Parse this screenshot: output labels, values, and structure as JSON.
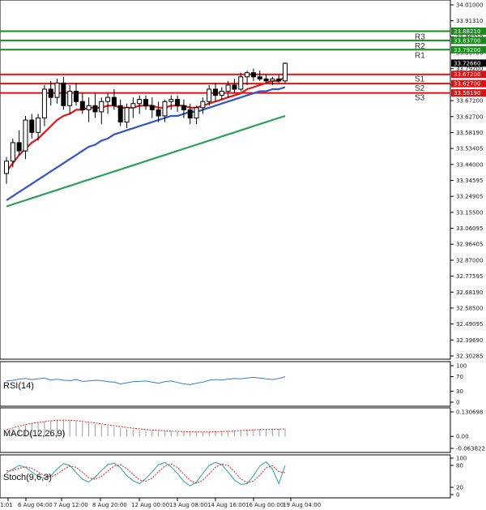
{
  "chart_data": [
    {
      "type": "candlestick",
      "y_ticks": [
        "34.01000",
        "33.91310",
        "33.88210",
        "33.83700",
        "33.79200",
        "33.72660",
        "33.67200",
        "33.62700",
        "33.58190",
        "33.53405",
        "33.44000",
        "33.34595",
        "33.24905",
        "33.15500",
        "33.06095",
        "32.96405",
        "32.87000",
        "32.77595",
        "32.68190",
        "32.58500",
        "32.49095",
        "32.39690",
        "32.30285"
      ],
      "x_ticks": [
        "1:01",
        "6 Aug 04:00",
        "7 Aug 12:00",
        "8 Aug 20:00",
        "12 Aug 00:00",
        "13 Aug 08:00",
        "14 Aug 16:00",
        "16 Aug 00:00",
        "19 Aug 04:00"
      ],
      "ylim": [
        32.30285,
        34.01
      ],
      "levels": [
        {
          "name": "R3",
          "value": 33.8821,
          "color": "#1a8a1a"
        },
        {
          "name": "R2",
          "value": 33.837,
          "color": "#1a8a1a"
        },
        {
          "name": "R1",
          "value": 33.792,
          "color": "#1a8a1a"
        },
        {
          "name": "S1",
          "value": 33.672,
          "color": "#e01010"
        },
        {
          "name": "S2",
          "value": 33.627,
          "color": "#e01010"
        },
        {
          "name": "S3",
          "value": 33.5819,
          "color": "#e01010"
        }
      ],
      "current_price": {
        "value": 33.7266,
        "label": "33.72660"
      },
      "candles": [
        [
          33.19,
          33.27,
          33.14,
          33.25
        ],
        [
          33.25,
          33.36,
          33.22,
          33.34
        ],
        [
          33.34,
          33.4,
          33.28,
          33.3
        ],
        [
          33.3,
          33.47,
          33.26,
          33.45
        ],
        [
          33.45,
          33.48,
          33.36,
          33.39
        ],
        [
          33.39,
          33.48,
          33.35,
          33.46
        ],
        [
          33.46,
          33.62,
          33.42,
          33.6
        ],
        [
          33.6,
          33.64,
          33.52,
          33.56
        ],
        [
          33.56,
          33.65,
          33.53,
          33.63
        ],
        [
          33.63,
          33.66,
          33.5,
          33.52
        ],
        [
          33.52,
          33.62,
          33.48,
          33.59
        ],
        [
          33.59,
          33.63,
          33.52,
          33.54
        ],
        [
          33.54,
          33.58,
          33.48,
          33.5
        ],
        [
          33.5,
          33.56,
          33.44,
          33.52
        ],
        [
          33.52,
          33.58,
          33.46,
          33.49
        ],
        [
          33.49,
          33.56,
          33.43,
          33.54
        ],
        [
          33.54,
          33.58,
          33.48,
          33.56
        ],
        [
          33.56,
          33.6,
          33.5,
          33.52
        ],
        [
          33.52,
          33.55,
          33.42,
          33.44
        ],
        [
          33.44,
          33.53,
          33.41,
          33.51
        ],
        [
          33.51,
          33.56,
          33.46,
          33.53
        ],
        [
          33.53,
          33.57,
          33.48,
          33.55
        ],
        [
          33.55,
          33.57,
          33.5,
          33.52
        ],
        [
          33.52,
          33.56,
          33.46,
          33.5
        ],
        [
          33.5,
          33.54,
          33.44,
          33.47
        ],
        [
          33.47,
          33.55,
          33.44,
          33.54
        ],
        [
          33.54,
          33.57,
          33.5,
          33.55
        ],
        [
          33.55,
          33.57,
          33.49,
          33.52
        ],
        [
          33.52,
          33.55,
          33.46,
          33.5
        ],
        [
          33.5,
          33.53,
          33.43,
          33.46
        ],
        [
          33.46,
          33.52,
          33.43,
          33.51
        ],
        [
          33.51,
          33.56,
          33.48,
          33.54
        ],
        [
          33.54,
          33.62,
          33.52,
          33.6
        ],
        [
          33.6,
          33.63,
          33.54,
          33.57
        ],
        [
          33.57,
          33.61,
          33.55,
          33.59
        ],
        [
          33.59,
          33.64,
          33.56,
          33.62
        ],
        [
          33.62,
          33.65,
          33.58,
          33.6
        ],
        [
          33.6,
          33.68,
          33.59,
          33.66
        ],
        [
          33.66,
          33.69,
          33.62,
          33.68
        ],
        [
          33.68,
          33.7,
          33.64,
          33.66
        ],
        [
          33.66,
          33.69,
          33.64,
          33.65
        ],
        [
          33.65,
          33.67,
          33.63,
          33.64
        ],
        [
          33.64,
          33.66,
          33.62,
          33.65
        ],
        [
          33.65,
          33.67,
          33.63,
          33.64
        ],
        [
          33.64,
          33.73,
          33.63,
          33.726
        ]
      ],
      "ma_fast": [
        33.2,
        33.24,
        33.28,
        33.31,
        33.34,
        33.36,
        33.39,
        33.42,
        33.45,
        33.47,
        33.48,
        33.5,
        33.5,
        33.51,
        33.51,
        33.51,
        33.52,
        33.52,
        33.51,
        33.51,
        33.51,
        33.52,
        33.52,
        33.52,
        33.51,
        33.51,
        33.52,
        33.52,
        33.52,
        33.51,
        33.51,
        33.52,
        33.53,
        33.54,
        33.55,
        33.56,
        33.57,
        33.58,
        33.6,
        33.61,
        33.62,
        33.63,
        33.64,
        33.64,
        33.66
      ],
      "ma_mid": [
        33.06,
        33.08,
        33.1,
        33.12,
        33.14,
        33.16,
        33.18,
        33.2,
        33.22,
        33.24,
        33.26,
        33.28,
        33.3,
        33.32,
        33.33,
        33.35,
        33.36,
        33.38,
        33.39,
        33.4,
        33.41,
        33.42,
        33.43,
        33.44,
        33.45,
        33.46,
        33.47,
        33.47,
        33.48,
        33.49,
        33.49,
        33.5,
        33.51,
        33.52,
        33.53,
        33.54,
        33.55,
        33.56,
        33.57,
        33.58,
        33.59,
        33.59,
        33.6,
        33.6,
        33.61
      ],
      "ma_slow": [
        33.03,
        33.04,
        33.05,
        33.06,
        33.07,
        33.08,
        33.09,
        33.1,
        33.11,
        33.12,
        33.13,
        33.14,
        33.15,
        33.16,
        33.17,
        33.18,
        33.19,
        33.2,
        33.21,
        33.22,
        33.23,
        33.24,
        33.25,
        33.26,
        33.27,
        33.28,
        33.29,
        33.3,
        33.31,
        33.32,
        33.33,
        33.34,
        33.35,
        33.36,
        33.37,
        33.38,
        33.39,
        33.4,
        33.41,
        33.42,
        33.43,
        33.44,
        33.45,
        33.46,
        33.47
      ]
    },
    {
      "type": "line",
      "name": "RSI(14)",
      "y_ticks": [
        "100",
        "70",
        "30",
        "0"
      ],
      "ylim": [
        0,
        100
      ],
      "values": [
        58,
        60,
        63,
        65,
        62,
        64,
        66,
        61,
        63,
        60,
        59,
        62,
        57,
        58,
        60,
        59,
        56,
        55,
        50,
        53,
        56,
        57,
        58,
        55,
        52,
        56,
        58,
        54,
        50,
        48,
        52,
        55,
        60,
        62,
        61,
        63,
        65,
        64,
        66,
        68,
        66,
        64,
        62,
        65,
        70
      ]
    },
    {
      "type": "bar",
      "name": "MACD(12,26,9)",
      "y_ticks": [
        "0.130698",
        "0.00",
        "-0.063822"
      ],
      "ylim": [
        -0.063822,
        0.130698
      ],
      "values": [
        0.03,
        0.04,
        0.05,
        0.06,
        0.07,
        0.075,
        0.08,
        0.085,
        0.09,
        0.088,
        0.085,
        0.08,
        0.075,
        0.07,
        0.065,
        0.06,
        0.055,
        0.05,
        0.045,
        0.04,
        0.037,
        0.034,
        0.032,
        0.03,
        0.028,
        0.026,
        0.025,
        0.024,
        0.023,
        0.022,
        0.022,
        0.023,
        0.024,
        0.026,
        0.028,
        0.03,
        0.032,
        0.034,
        0.036,
        0.038,
        0.04,
        0.04,
        0.041,
        0.041,
        0.042
      ],
      "signal": [
        0.035,
        0.045,
        0.055,
        0.063,
        0.07,
        0.075,
        0.079,
        0.083,
        0.086,
        0.087,
        0.086,
        0.084,
        0.08,
        0.076,
        0.072,
        0.067,
        0.062,
        0.057,
        0.052,
        0.048,
        0.044,
        0.04,
        0.037,
        0.034,
        0.032,
        0.03,
        0.028,
        0.027,
        0.026,
        0.025,
        0.024,
        0.024,
        0.024,
        0.025,
        0.026,
        0.027,
        0.029,
        0.031,
        0.033,
        0.035,
        0.036,
        0.037,
        0.038,
        0.039,
        0.04
      ]
    },
    {
      "type": "line",
      "name": "Stoch(9,6,3)",
      "y_ticks": [
        "100",
        "80",
        "20",
        "0"
      ],
      "ylim": [
        0,
        100
      ],
      "k": [
        60,
        70,
        80,
        75,
        62,
        50,
        45,
        52,
        70,
        85,
        80,
        60,
        42,
        35,
        48,
        66,
        82,
        86,
        74,
        52,
        38,
        30,
        44,
        62,
        82,
        88,
        76,
        58,
        36,
        24,
        34,
        58,
        80,
        88,
        82,
        62,
        40,
        28,
        30,
        52,
        78,
        90,
        70,
        30,
        80
      ],
      "d": [
        65,
        66,
        72,
        76,
        72,
        62,
        52,
        49,
        56,
        69,
        78,
        75,
        61,
        46,
        42,
        50,
        65,
        78,
        82,
        71,
        55,
        40,
        37,
        45,
        63,
        78,
        84,
        74,
        56,
        39,
        31,
        39,
        57,
        75,
        84,
        80,
        62,
        43,
        33,
        37,
        53,
        73,
        79,
        63,
        60
      ]
    }
  ]
}
